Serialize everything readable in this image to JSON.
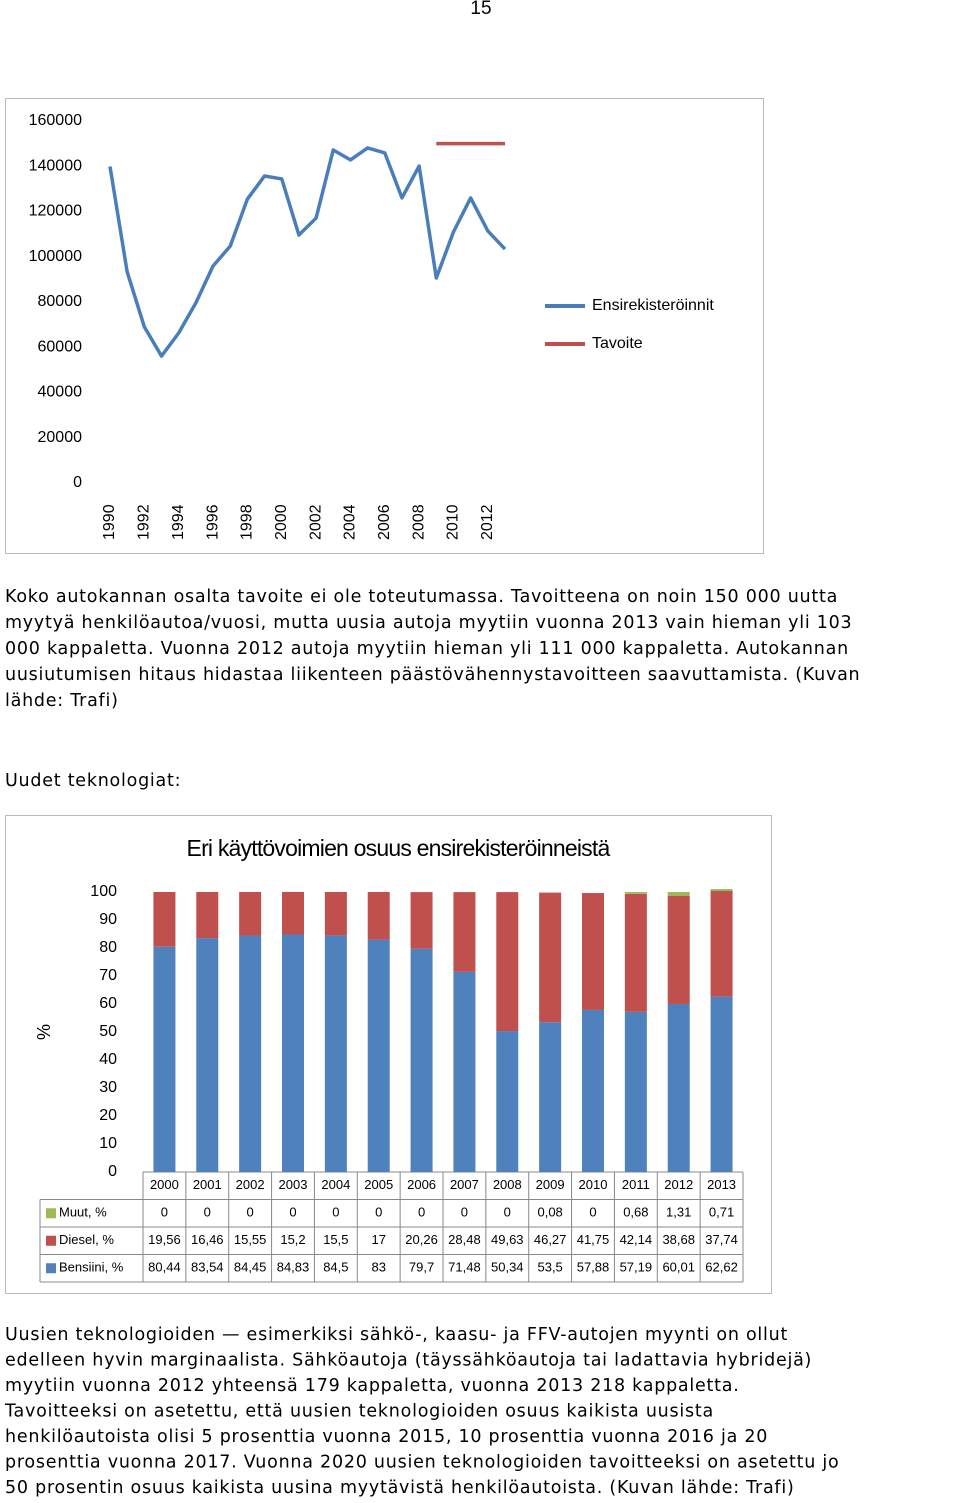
{
  "page_number": "15",
  "chart_data": [
    {
      "type": "line",
      "x": [
        1990,
        1991,
        1992,
        1993,
        1994,
        1995,
        1996,
        1997,
        1998,
        1999,
        2000,
        2001,
        2002,
        2003,
        2004,
        2005,
        2006,
        2007,
        2008,
        2009,
        2010,
        2011,
        2012,
        2013
      ],
      "xlim": [
        1990,
        2013
      ],
      "xticks": [
        1990,
        1992,
        1994,
        1996,
        1998,
        2000,
        2002,
        2004,
        2006,
        2008,
        2010,
        2012
      ],
      "ylim": [
        0,
        160000
      ],
      "yticks": [
        0,
        20000,
        40000,
        60000,
        80000,
        100000,
        120000,
        140000,
        160000
      ],
      "legend": "right",
      "series": [
        {
          "name": "Ensirekisteröinnit",
          "color": "#4a7ebb",
          "values": [
            139900,
            93300,
            69000,
            56100,
            66300,
            79600,
            95900,
            104700,
            125500,
            135700,
            134400,
            109600,
            117100,
            147200,
            142800,
            148100,
            145900,
            126000,
            140100,
            90600,
            111000,
            126000,
            111400,
            103400
          ]
        },
        {
          "name": "Tavoite",
          "color": "#c0504d",
          "values": [
            null,
            null,
            null,
            null,
            null,
            null,
            null,
            null,
            null,
            null,
            null,
            null,
            null,
            null,
            null,
            null,
            null,
            null,
            null,
            150000,
            150000,
            150000,
            150000,
            150000
          ]
        }
      ]
    },
    {
      "type": "bar",
      "stacked": true,
      "title": "Eri käyttövoimien osuus ensirekisteröinneistä",
      "y_label": "%",
      "categories": [
        "2000",
        "2001",
        "2002",
        "2003",
        "2004",
        "2005",
        "2006",
        "2007",
        "2008",
        "2009",
        "2010",
        "2011",
        "2012",
        "2013"
      ],
      "ylim": [
        0,
        100
      ],
      "yticks": [
        0,
        10,
        20,
        30,
        40,
        50,
        60,
        70,
        80,
        90,
        100
      ],
      "series": [
        {
          "name": "Bensiini, %",
          "color": "#4f81bd",
          "values": [
            80.44,
            83.54,
            84.45,
            84.83,
            84.5,
            83,
            79.7,
            71.48,
            50.34,
            53.5,
            57.88,
            57.19,
            60.01,
            62.62
          ],
          "value_labels": [
            "80,44",
            "83,54",
            "84,45",
            "84,83",
            "84,5",
            "83",
            "79,7",
            "71,48",
            "50,34",
            "53,5",
            "57,88",
            "57,19",
            "60,01",
            "62,62"
          ]
        },
        {
          "name": "Diesel, %",
          "color": "#c0504d",
          "values": [
            19.56,
            16.46,
            15.55,
            15.2,
            15.5,
            17,
            20.26,
            28.48,
            49.63,
            46.27,
            41.75,
            42.14,
            38.68,
            37.74
          ],
          "value_labels": [
            "19,56",
            "16,46",
            "15,55",
            "15,2",
            "15,5",
            "17",
            "20,26",
            "28,48",
            "49,63",
            "46,27",
            "41,75",
            "42,14",
            "38,68",
            "37,74"
          ]
        },
        {
          "name": "Muut, %",
          "color": "#9bbb59",
          "values": [
            0,
            0,
            0,
            0,
            0,
            0,
            0,
            0,
            0,
            0.08,
            0,
            0.68,
            1.31,
            0.71
          ],
          "value_labels": [
            "0",
            "0",
            "0",
            "0",
            "0",
            "0",
            "0",
            "0",
            "0",
            "0,08",
            "0",
            "0,68",
            "1,31",
            "0,71"
          ]
        }
      ]
    }
  ],
  "paragraph1": [
    "Koko autokannan osalta tavoite ei ole toteutumassa. Tavoitteena on noin 150 000 uutta",
    "myytyä henkilöautoa/vuosi, mutta uusia autoja myytiin vuonna 2013 vain hieman yli 103",
    "000 kappaletta. Vuonna 2012 autoja myytiin hieman yli 111 000 kappaletta. Autokannan",
    "uusiutumisen hitaus hidastaa liikenteen päästövähennystavoitteen saavuttamista. (Kuvan",
    "lähde: Trafi)"
  ],
  "heading": "Uudet teknologiat:",
  "paragraph2": [
    "Uusien teknologioiden — esimerkiksi sähkö-, kaasu- ja FFV-autojen myynti on ollut",
    "edelleen hyvin marginaalista. Sähköautoja (täyssähköautoja tai ladattavia hybridejä)",
    "myytiin vuonna 2012 yhteensä 179 kappaletta, vuonna 2013 218 kappaletta.",
    "Tavoitteeksi on asetettu, että uusien teknologioiden osuus kaikista uusista",
    "henkilöautoista olisi 5 prosenttia vuonna 2015, 10 prosenttia vuonna 2016 ja 20",
    "prosenttia vuonna 2017. Vuonna 2020 uusien teknologioiden tavoitteeksi on asetettu jo",
    "50 prosentin osuus kaikista uusina myytävistä henkilöautoista. (Kuvan lähde: Trafi)"
  ]
}
